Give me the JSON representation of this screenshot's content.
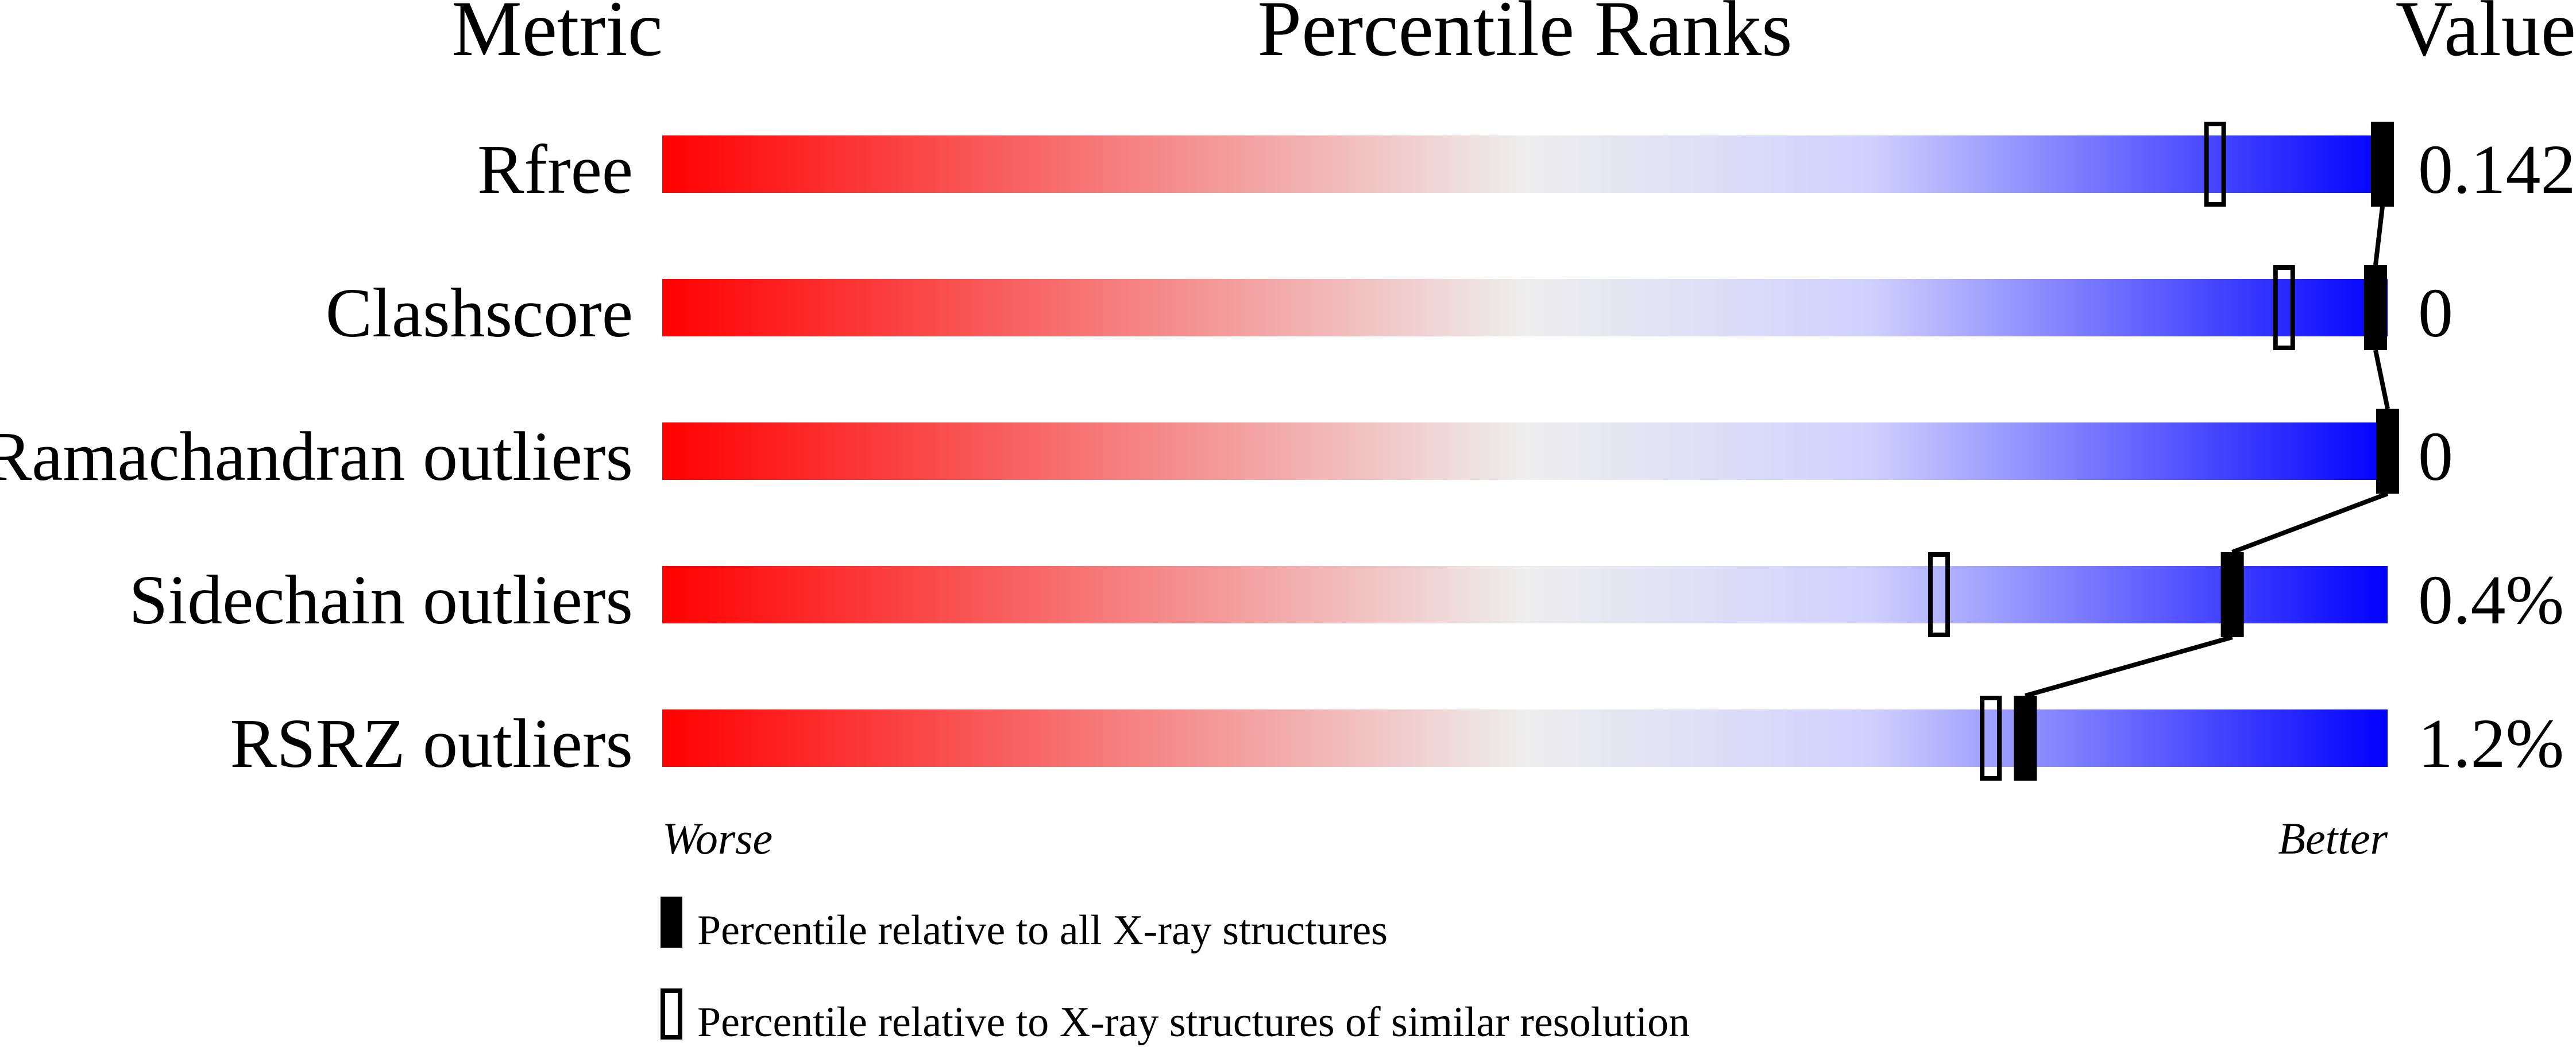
{
  "chart_data": {
    "type": "percentile-ranks",
    "headers": {
      "metric": "Metric",
      "ranks": "Percentile Ranks",
      "value": "Value"
    },
    "axis": {
      "left_label": "Worse",
      "right_label": "Better",
      "range": [
        0,
        100
      ]
    },
    "gradient_colors": [
      "#ff0000",
      "#eeeeee",
      "#d0d0ff",
      "#0000ff"
    ],
    "rows": [
      {
        "metric": "Rfree",
        "value": "0.142",
        "percentile_all": 99.7,
        "percentile_similar": 90
      },
      {
        "metric": "Clashscore",
        "value": "0",
        "percentile_all": 99.3,
        "percentile_similar": 94
      },
      {
        "metric": "Ramachandran outliers",
        "value": "0",
        "percentile_all": 100,
        "percentile_similar": null
      },
      {
        "metric": "Sidechain outliers",
        "value": "0.4%",
        "percentile_all": 91,
        "percentile_similar": 74
      },
      {
        "metric": "RSRZ outliers",
        "value": "1.2%",
        "percentile_all": 79,
        "percentile_similar": 77
      }
    ],
    "legend": [
      {
        "marker": "filled",
        "label": "Percentile relative to all X-ray structures"
      },
      {
        "marker": "open",
        "label": "Percentile relative to X-ray structures of similar resolution"
      }
    ]
  }
}
